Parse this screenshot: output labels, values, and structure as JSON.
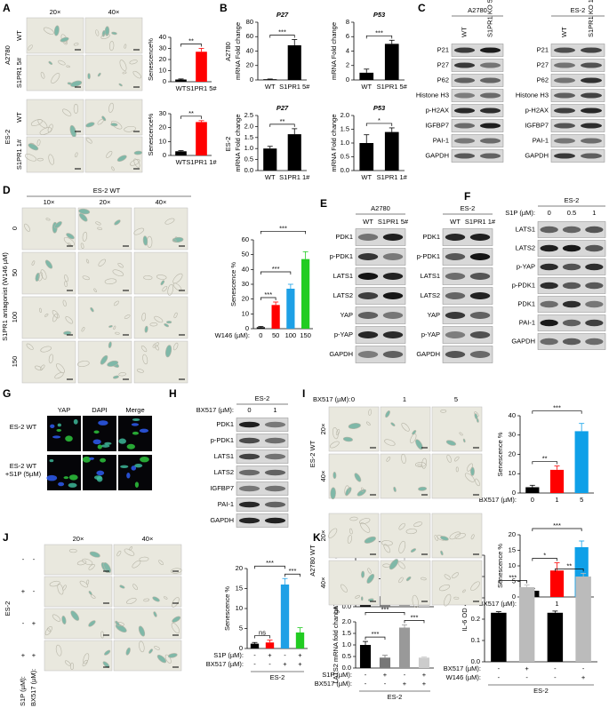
{
  "panels": {
    "A": {
      "label": "A",
      "columns": [
        "20×",
        "40×"
      ],
      "groups": [
        {
          "name": "A2780",
          "rows": [
            "WT",
            "S1PR1 5#"
          ]
        },
        {
          "name": "ES-2",
          "rows": [
            "WT",
            "S1PR1 1#"
          ]
        }
      ]
    },
    "B": {
      "label": "B",
      "rows": [
        "A2780",
        "ES-2"
      ]
    },
    "C": {
      "label": "C",
      "blots": [
        {
          "title": "A2780",
          "lanes": [
            "WT",
            "S1PR1 KO 5#"
          ],
          "rows": [
            "P21",
            "P27",
            "P62",
            "Histone H3",
            "p-H2AX",
            "IGFBP7",
            "PAI-1",
            "GAPDH"
          ]
        },
        {
          "title": "ES-2",
          "lanes": [
            "WT",
            "S1PR1 KO 1#"
          ],
          "rows": [
            "P21",
            "P27",
            "P62",
            "Histone H3",
            "p-H2AX",
            "IGFBP7",
            "PAI-1",
            "GAPDH"
          ]
        }
      ]
    },
    "D": {
      "label": "D",
      "title": "ES-2 WT",
      "columns": [
        "10×",
        "20×",
        "40×"
      ],
      "rows": [
        "0",
        "50",
        "100",
        "150"
      ],
      "side_label": "S1PR1 antagonist (W146 µM)"
    },
    "E": {
      "label": "E",
      "blots": [
        {
          "title": "A2780",
          "lanes": [
            "WT",
            "S1PR1 5#"
          ],
          "rows": [
            "PDK1",
            "p-PDK1",
            "LATS1",
            "LATS2",
            "YAP",
            "p-YAP",
            "GAPDH"
          ]
        },
        {
          "title": "ES-2",
          "lanes": [
            "WT",
            "S1PR1 1#"
          ],
          "rows": [
            "PDK1",
            "p-PDK1",
            "LATS1",
            "LATS2",
            "YAP",
            "p-YAP",
            "GAPDH"
          ]
        }
      ]
    },
    "F": {
      "label": "F",
      "blots": [
        {
          "title": "ES-2",
          "treatment": "S1P (µM):",
          "lanes": [
            "0",
            "0.5",
            "1"
          ],
          "rows": [
            "LATS1",
            "LATS2",
            "p-YAP",
            "p-PDK1",
            "PDK1",
            "PAI-1",
            "GAPDH"
          ]
        }
      ]
    },
    "G": {
      "label": "G",
      "columns": [
        "YAP",
        "DAPI",
        "Merge"
      ],
      "rows": [
        "ES-2 WT",
        "ES-2 WT +S1P (5µM)"
      ]
    },
    "H": {
      "label": "H",
      "blots": [
        {
          "title": "ES-2",
          "treatment": "BX517 (µM):",
          "lanes": [
            "0",
            "1"
          ],
          "rows": [
            "PDK1",
            "p-PDK1",
            "LATS1",
            "LATS2",
            "IGFBP7",
            "PAI-1",
            "GAPDH"
          ]
        }
      ]
    },
    "I": {
      "label": "I",
      "treatment": "BX517 (µM):",
      "columns": [
        "0",
        "1",
        "5"
      ],
      "groups": [
        {
          "name": "ES-2 WT",
          "rows": [
            "20×",
            "40×"
          ]
        },
        {
          "name": "A2780 WT",
          "rows": [
            "20×",
            "40×"
          ]
        }
      ]
    },
    "J": {
      "label": "J",
      "columns": [
        "20×",
        "40×"
      ],
      "group": "ES-2",
      "conditions": [
        {
          "name": "S1P (µM):",
          "values": [
            "-",
            "+",
            "-",
            "+"
          ]
        },
        {
          "name": "BX517 (µM):",
          "values": [
            "-",
            "-",
            "+",
            "+"
          ]
        }
      ]
    },
    "K": {
      "label": "K"
    },
    "L": {
      "label": "L"
    }
  },
  "chart_data": [
    {
      "type": "bar",
      "ylabel": "Senescence%",
      "categories": [
        "WT",
        "S1PR1 5#"
      ],
      "values": [
        2,
        27
      ],
      "errors": [
        0.5,
        3
      ],
      "colors": [
        "#000000",
        "#ff0000"
      ],
      "ylim": [
        0,
        40
      ],
      "yticks": [
        0,
        10,
        20,
        30,
        40
      ],
      "annotations": [
        "**"
      ]
    },
    {
      "type": "bar",
      "ylabel": "Senescence%",
      "categories": [
        "WT",
        "S1PR1 1#"
      ],
      "values": [
        3,
        24
      ],
      "errors": [
        0.5,
        1
      ],
      "colors": [
        "#000000",
        "#ff0000"
      ],
      "ylim": [
        0,
        30
      ],
      "yticks": [
        0,
        10,
        20,
        30
      ],
      "annotations": [
        "**"
      ]
    },
    {
      "type": "bar",
      "title": "P27",
      "ylabel": "mRNA Fold change",
      "categories": [
        "WT",
        "S1PR1 5#"
      ],
      "values": [
        1,
        48
      ],
      "errors": [
        0.3,
        8
      ],
      "colors": [
        "#000000",
        "#000000"
      ],
      "ylim": [
        0,
        80
      ],
      "yticks": [
        0,
        20,
        40,
        60,
        80
      ],
      "annotations": [
        "***"
      ]
    },
    {
      "type": "bar",
      "title": "P53",
      "ylabel": "mRNA Fold change",
      "categories": [
        "WT",
        "S1PR1 5#"
      ],
      "values": [
        1,
        5
      ],
      "errors": [
        0.5,
        0.5
      ],
      "colors": [
        "#000000",
        "#000000"
      ],
      "ylim": [
        0,
        8
      ],
      "yticks": [
        0,
        2,
        4,
        6,
        8
      ],
      "annotations": [
        "***"
      ]
    },
    {
      "type": "bar",
      "title": "P27",
      "ylabel": "mRNA Fold change",
      "categories": [
        "WT",
        "S1PR1 1#"
      ],
      "values": [
        1,
        1.65
      ],
      "errors": [
        0.1,
        0.25
      ],
      "colors": [
        "#000000",
        "#000000"
      ],
      "ylim": [
        0,
        2.5
      ],
      "yticks": [
        {
          "value": 0,
          "label": "0.0"
        },
        0.5,
        {
          "value": 1,
          "label": "1.0"
        },
        1.5,
        {
          "value": 2,
          "label": "2.0"
        },
        2.5
      ],
      "annotations": [
        "**"
      ]
    },
    {
      "type": "bar",
      "title": "P53",
      "ylabel": "mRNA Fold change",
      "categories": [
        "WT",
        "S1PR1 1#"
      ],
      "values": [
        1,
        1.4
      ],
      "errors": [
        0.3,
        0.15
      ],
      "colors": [
        "#000000",
        "#000000"
      ],
      "ylim": [
        0,
        2
      ],
      "yticks": [
        {
          "value": 0,
          "label": "0.0"
        },
        0.5,
        {
          "value": 1,
          "label": "1.0"
        },
        1.5,
        {
          "value": 2,
          "label": "2.0"
        }
      ],
      "annotations": [
        "*"
      ]
    },
    {
      "type": "bar",
      "ylabel": "Senescence %",
      "xlabel": "W146 (µM):",
      "categories": [
        "0",
        "50",
        "100",
        "150"
      ],
      "values": [
        1,
        16,
        27,
        47
      ],
      "errors": [
        0.5,
        2,
        3,
        5
      ],
      "colors": [
        "#000000",
        "#ff0000",
        "#1ea0e6",
        "#22cc22"
      ],
      "ylim": [
        0,
        60
      ],
      "yticks": [
        0,
        10,
        20,
        30,
        40,
        50,
        60
      ],
      "annotations": [
        "***",
        "***",
        "***"
      ]
    },
    {
      "type": "bar",
      "ylabel": "Senescence %",
      "xlabel": "BX517 (µM):",
      "categories": [
        "0",
        "1",
        "5"
      ],
      "values": [
        3,
        12,
        32
      ],
      "errors": [
        1,
        2,
        4
      ],
      "colors": [
        "#000000",
        "#ff0000",
        "#0fa0e8"
      ],
      "ylim": [
        0,
        40
      ],
      "yticks": [
        0,
        10,
        20,
        30,
        40
      ],
      "annotations": [
        "**",
        "***"
      ]
    },
    {
      "type": "bar",
      "ylabel": "Senescence %",
      "xlabel": "BX517 (µM):",
      "categories": [
        "0",
        "1",
        "5"
      ],
      "values": [
        2,
        8.5,
        16
      ],
      "errors": [
        0.7,
        2.5,
        2
      ],
      "colors": [
        "#000000",
        "#ff0000",
        "#0fa0e8"
      ],
      "ylim": [
        0,
        20
      ],
      "yticks": [
        0,
        5,
        10,
        15,
        20
      ],
      "annotations": [
        "*",
        "***"
      ]
    },
    {
      "type": "bar",
      "ylabel": "Senescence %",
      "conditions": [
        {
          "name": "S1P (µM):",
          "values": [
            "-",
            "+",
            "-",
            "+"
          ]
        },
        {
          "name": "BX517 (µM):",
          "values": [
            "-",
            "-",
            "+",
            "+"
          ]
        }
      ],
      "group": "ES-2",
      "values": [
        1.2,
        1.5,
        16,
        4
      ],
      "errors": [
        0.3,
        0.6,
        1.5,
        1.2
      ],
      "colors": [
        "#000000",
        "#ff0000",
        "#1ea0e6",
        "#22cc22"
      ],
      "ylim": [
        0,
        20
      ],
      "yticks": [
        0,
        5,
        10,
        15,
        20
      ],
      "annotations": [
        "ns",
        "***",
        "***"
      ]
    },
    {
      "type": "bar",
      "ylabel": "LATS1 mRNA fold change",
      "values": [
        1,
        0.5,
        2.2,
        0.4
      ],
      "errors": [
        0.12,
        0.1,
        0.3,
        0.03
      ],
      "colors": [
        "#000000",
        "#777777",
        "#999999",
        "#cccccc"
      ],
      "ylim": [
        0,
        3
      ],
      "yticks": [
        {
          "value": 0,
          "label": "0.0"
        },
        0.5,
        {
          "value": 1,
          "label": "1.0"
        },
        1.5,
        {
          "value": 2,
          "label": "2.0"
        },
        2.5,
        {
          "value": 3,
          "label": "3.0"
        }
      ],
      "annotations": [
        "*",
        "***",
        "***"
      ]
    },
    {
      "type": "bar",
      "ylabel": "LATS2 mRNA fold change",
      "conditions": [
        {
          "name": "S1P (µM):",
          "values": [
            "-",
            "+",
            "-",
            "+"
          ]
        },
        {
          "name": "BX517 (µM):",
          "values": [
            "-",
            "-",
            "+",
            "+"
          ]
        }
      ],
      "group": "ES-2",
      "values": [
        1,
        0.45,
        1.75,
        0.45
      ],
      "errors": [
        0.15,
        0.1,
        0.12,
        0.03
      ],
      "colors": [
        "#000000",
        "#777777",
        "#999999",
        "#cccccc"
      ],
      "ylim": [
        0,
        2
      ],
      "yticks": [
        {
          "value": 0,
          "label": "0.0"
        },
        0.5,
        {
          "value": 1,
          "label": "1.0"
        },
        1.5,
        {
          "value": 2,
          "label": "2.0"
        }
      ],
      "annotations": [
        "***",
        "***",
        "***"
      ]
    },
    {
      "type": "bar",
      "ylabel": "IL-6 OD 450nm",
      "conditions": [
        {
          "name": "BX517 (µM):",
          "values": [
            "-",
            "+",
            "-",
            "-"
          ]
        },
        {
          "name": "W146 (µM):",
          "values": [
            "-",
            "-",
            "-",
            "+"
          ]
        }
      ],
      "group": "ES-2",
      "values": [
        0.23,
        0.35,
        0.23,
        0.4
      ],
      "errors": [
        0.005,
        0.01,
        0.008,
        0.015
      ],
      "colors": [
        "#000000",
        "#bbbbbb",
        "#000000",
        "#bbbbbb"
      ],
      "ylim": [
        0,
        0.5
      ],
      "yticks": [
        {
          "value": 0,
          "label": "0.0"
        },
        0.1,
        0.2,
        0.3,
        0.4,
        0.5
      ],
      "annotations": [
        "***",
        "**"
      ]
    }
  ]
}
